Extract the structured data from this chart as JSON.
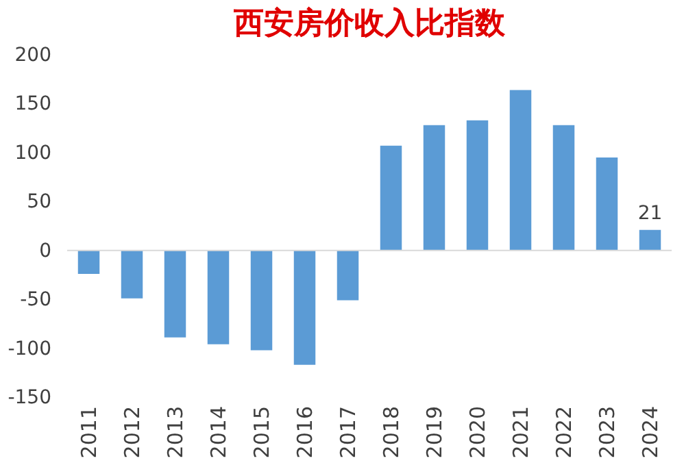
{
  "chart_data": {
    "type": "bar",
    "title": "西安房价收入比指数",
    "categories": [
      "2011",
      "2012",
      "2013",
      "2014",
      "2015",
      "2016",
      "2017",
      "2018",
      "2019",
      "2020",
      "2021",
      "2022",
      "2023",
      "2024"
    ],
    "series": [
      {
        "color": "#5b9bd5",
        "values": [
          -24,
          -49,
          -89,
          -96,
          -102,
          -117,
          -51,
          107,
          128,
          133,
          164,
          128,
          95,
          21
        ],
        "value_labels": [
          null,
          null,
          null,
          null,
          null,
          null,
          null,
          null,
          null,
          null,
          null,
          null,
          null,
          "21"
        ]
      }
    ],
    "ylim": [
      -150,
      200
    ],
    "yticks": [
      -150,
      -100,
      -50,
      0,
      50,
      100,
      150,
      200
    ],
    "ref_lines": [
      {
        "axis": "y",
        "value": 0,
        "color": "#d9d9d9"
      }
    ]
  }
}
